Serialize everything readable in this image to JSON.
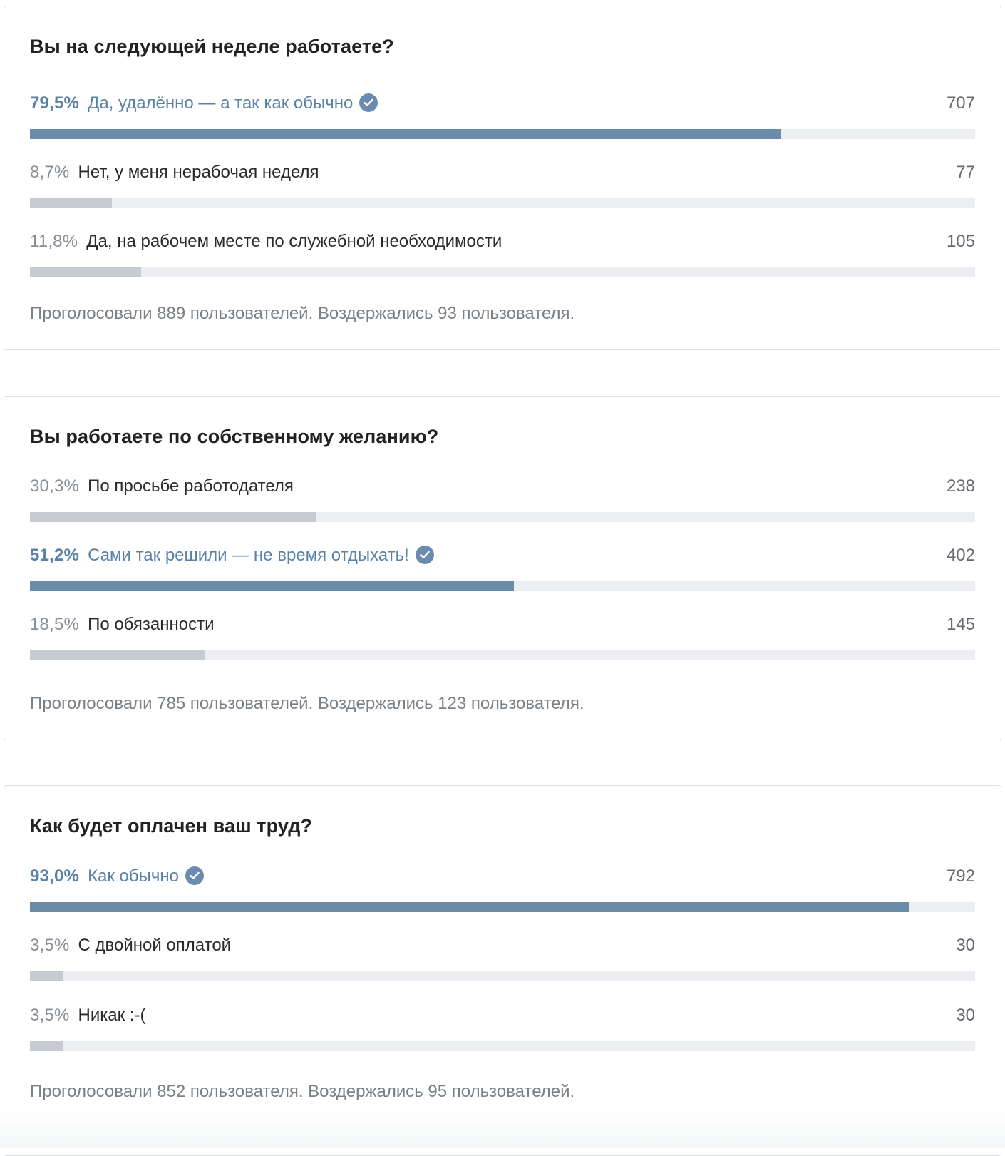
{
  "polls": [
    {
      "question": "Вы на следующей неделе работаете?",
      "answers": [
        {
          "percent": "79,5%",
          "label": "Да, удалённо — а так как обычно",
          "count": "707",
          "share": 0.795,
          "voted": true
        },
        {
          "percent": "8,7%",
          "label": "Нет, у меня нерабочая неделя",
          "count": "77",
          "share": 0.087,
          "voted": false
        },
        {
          "percent": "11,8%",
          "label": "Да, на рабочем месте по служебной необходимости",
          "count": "105",
          "share": 0.118,
          "voted": false
        }
      ],
      "summary": "Проголосовали 889 пользователей. Воздержались 93 пользователя."
    },
    {
      "question": "Вы работаете по собственному желанию?",
      "answers": [
        {
          "percent": "30,3%",
          "label": "По просьбе работодателя",
          "count": "238",
          "share": 0.303,
          "voted": false
        },
        {
          "percent": "51,2%",
          "label": "Сами так решили — не время отдыхать!",
          "count": "402",
          "share": 0.512,
          "voted": true
        },
        {
          "percent": "18,5%",
          "label": "По обязанности",
          "count": "145",
          "share": 0.185,
          "voted": false
        }
      ],
      "summary": "Проголосовали 785 пользователей. Воздержались 123 пользователя."
    },
    {
      "question": "Как будет оплачен ваш труд?",
      "answers": [
        {
          "percent": "93,0%",
          "label": "Как обычно",
          "count": "792",
          "share": 0.93,
          "voted": true
        },
        {
          "percent": "3,5%",
          "label": "С двойной оплатой",
          "count": "30",
          "share": 0.035,
          "voted": false
        },
        {
          "percent": "3,5%",
          "label": "Никак :-(",
          "count": "30",
          "share": 0.035,
          "voted": false
        }
      ],
      "summary": "Проголосовали 852 пользователя. Воздержались 95 пользователей."
    }
  ],
  "colors": {
    "voted_accent": "#5a81a6",
    "voted_bar": "#6a8ca8",
    "other_bar": "#c6cbd1",
    "track": "#eceef1"
  },
  "icons": {
    "voted_marker": "check-circle-icon"
  }
}
